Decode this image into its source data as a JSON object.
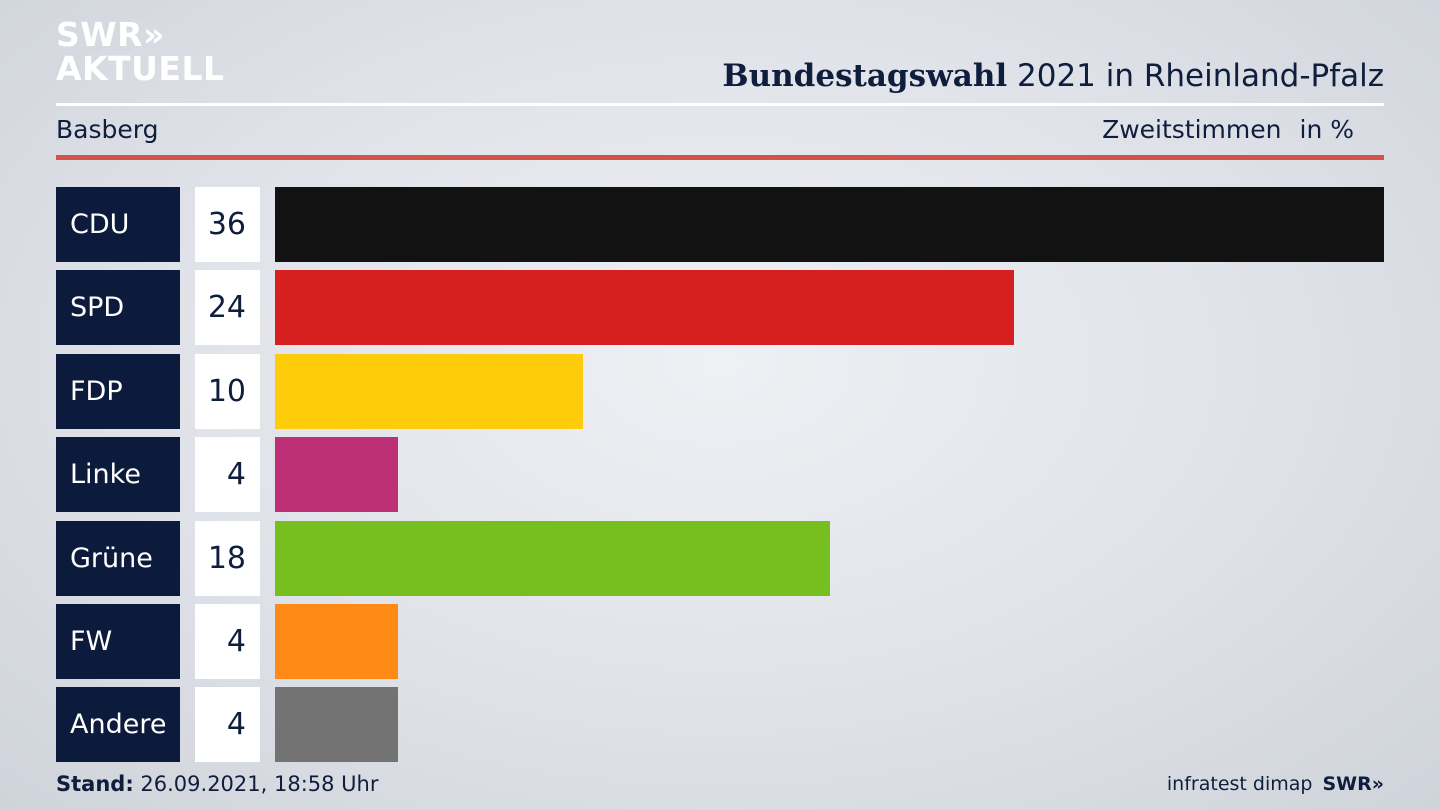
{
  "logo": {
    "line1": "SWR",
    "chevrons": "»",
    "line2": "AKTUELL"
  },
  "header": {
    "title_bold": "Bundestagswahl",
    "title_rest": " 2021 in Rheinland-Pfalz",
    "region": "Basberg",
    "measure": "Zweitstimmen",
    "unit": "in %"
  },
  "chart_data": {
    "type": "bar",
    "orientation": "horizontal",
    "categories": [
      "CDU",
      "SPD",
      "FDP",
      "Linke",
      "Grüne",
      "FW",
      "Andere"
    ],
    "values": [
      36,
      24,
      10,
      4,
      18,
      4,
      4
    ],
    "colors": [
      "#121212",
      "#d62020",
      "#ffcc0b",
      "#bd3075",
      "#77be1f",
      "#ff8b16",
      "#737373"
    ],
    "xlim": [
      0,
      36
    ],
    "grid": false
  },
  "footer": {
    "stand_label": "Stand:",
    "stand_value": " 26.09.2021, 18:58 Uhr",
    "source": "infratest dimap",
    "source_logo": "SWR»"
  }
}
